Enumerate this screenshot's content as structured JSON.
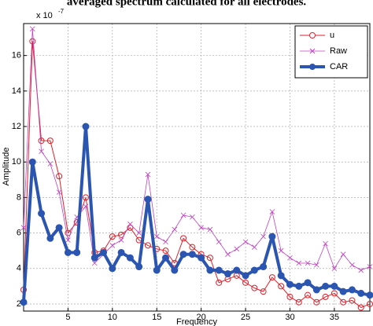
{
  "chart_data": {
    "type": "line",
    "title": "averaged spectrum calculated for all electrodes.",
    "x_label": "Frequency",
    "y_label": "Amplitude",
    "y_exponent": {
      "base": "x 10",
      "power": "-7"
    },
    "x": [
      0,
      1,
      2,
      3,
      4,
      5,
      6,
      7,
      8,
      9,
      10,
      11,
      12,
      13,
      14,
      15,
      16,
      17,
      18,
      19,
      20,
      21,
      22,
      23,
      24,
      25,
      26,
      27,
      28,
      29,
      30,
      31,
      32,
      33,
      34,
      35,
      36,
      37,
      38,
      39
    ],
    "series": [
      {
        "name": "u",
        "color": "#e0202a",
        "marker": "circle",
        "width": 1,
        "values": [
          2.8,
          16.8,
          11.2,
          11.2,
          9.2,
          6.0,
          6.6,
          8.0,
          4.9,
          5.0,
          5.8,
          5.9,
          6.3,
          5.6,
          5.3,
          5.1,
          5.0,
          4.3,
          5.7,
          5.2,
          4.8,
          4.6,
          3.2,
          3.4,
          3.6,
          3.2,
          2.9,
          2.7,
          3.5,
          3.0,
          2.4,
          2.1,
          2.5,
          2.1,
          2.4,
          2.6,
          2.1,
          2.2,
          1.8,
          2.0
        ]
      },
      {
        "name": "Raw",
        "color": "#c040c0",
        "marker": "x",
        "width": 0.8,
        "values": [
          6.3,
          17.5,
          10.6,
          9.9,
          8.3,
          5.6,
          6.9,
          7.5,
          4.3,
          4.8,
          5.3,
          5.6,
          6.5,
          6.0,
          9.3,
          5.8,
          5.5,
          6.2,
          7.0,
          6.9,
          6.3,
          6.2,
          5.5,
          4.8,
          5.1,
          5.5,
          5.2,
          5.8,
          7.2,
          5.0,
          4.6,
          4.3,
          4.3,
          4.2,
          5.4,
          4.0,
          4.8,
          4.2,
          3.9,
          4.1
        ]
      },
      {
        "name": "CAR",
        "color": "#2a55b0",
        "marker": "dot",
        "width": 4,
        "values": [
          2.1,
          10,
          7.1,
          5.7,
          6.3,
          4.9,
          4.9,
          12,
          4.6,
          4.9,
          4.0,
          4.9,
          4.6,
          4.1,
          7.9,
          3.9,
          4.6,
          3.9,
          4.8,
          4.8,
          4.6,
          3.9,
          3.9,
          3.7,
          3.9,
          3.6,
          3.9,
          4.1,
          5.8,
          3.6,
          3.1,
          3.0,
          3.2,
          2.8,
          3.0,
          3.0,
          2.7,
          2.8,
          2.6,
          2.5
        ]
      }
    ],
    "xlim": [
      0,
      39
    ],
    "xticks": [
      5,
      10,
      15,
      20,
      25,
      30,
      35
    ],
    "ylim": [
      1.6,
      17.8
    ],
    "yticks": [
      2,
      4,
      6,
      8,
      10,
      12,
      14,
      16
    ],
    "grid": true,
    "legend": "top-right"
  }
}
